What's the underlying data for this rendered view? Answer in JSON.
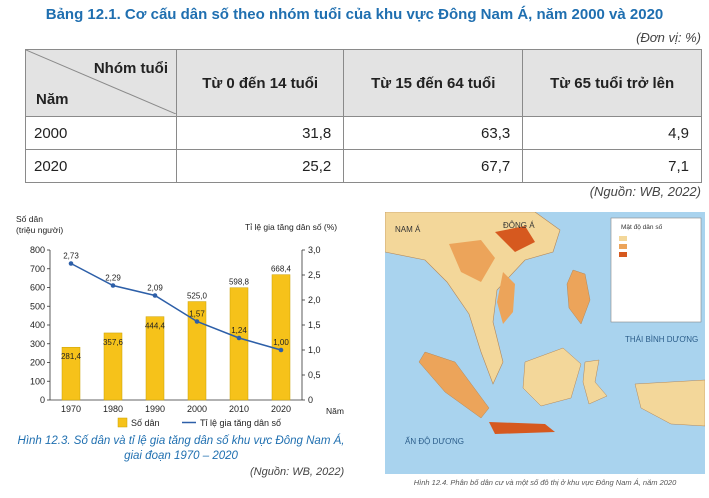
{
  "title": "Bảng 12.1. Cơ cấu dân số theo nhóm tuổi của khu vực Đông Nam Á, năm 2000 và 2020",
  "unit": "(Đơn vị: %)",
  "table": {
    "corner_top": "Nhóm tuổi",
    "corner_bottom": "Năm",
    "headers": [
      "Từ 0 đến 14 tuổi",
      "Từ 15 đến 64 tuổi",
      "Từ 65 tuổi trở lên"
    ],
    "rows": [
      {
        "year": "2000",
        "values": [
          "31,8",
          "63,3",
          "4,9"
        ]
      },
      {
        "year": "2020",
        "values": [
          "25,2",
          "67,7",
          "7,1"
        ]
      }
    ]
  },
  "table_source": "(Nguồn: WB, 2022)",
  "figure_caption_line1": "Hình 12.3. Số dân và tỉ lệ gia tăng dân số khu vực Đông Nam Á,",
  "figure_caption_line2": "giai đoạn 1970 – 2020",
  "figure_source": "(Nguồn: WB, 2022)",
  "map_caption": "Hình 12.4. Phân bố dân cư và một số đô thị ở khu vực Đông Nam Á, năm 2020",
  "map_labels": {
    "nam_a": "NAM Á",
    "dong_a": "ĐÔNG Á",
    "thai_binh_duong": "THÁI BÌNH DƯƠNG",
    "an_do_duong": "ẤN ĐỘ DƯƠNG",
    "legend_title": "Mật độ dân số"
  },
  "colors": {
    "title": "#1f6fb0",
    "bar": "#f6c21a",
    "line": "#2d5fa8",
    "header_bg": "#e3e3e3",
    "sea": "#a9d3ee",
    "land_low": "#f3d79a",
    "land_mid": "#eca45a",
    "land_high": "#d6591f"
  },
  "chart_data": {
    "type": "bar",
    "categories": [
      "1970",
      "1980",
      "1990",
      "2000",
      "2010",
      "2020"
    ],
    "series": [
      {
        "name": "Số dân",
        "type": "bar",
        "axis": "left",
        "values": [
          281.4,
          357.6,
          444.4,
          525.0,
          598.8,
          668.4
        ]
      },
      {
        "name": "Tỉ lệ gia tăng dân số",
        "type": "line",
        "axis": "right",
        "values": [
          2.73,
          2.29,
          2.09,
          1.57,
          1.24,
          1.0
        ]
      }
    ],
    "data_labels_bar": [
      "281,4",
      "357,6",
      "444,4",
      "525,0",
      "598,8",
      "668,4"
    ],
    "data_labels_line": [
      "2,73",
      "2,29",
      "2,09",
      "1,57",
      "1,24",
      "1,00"
    ],
    "ylabel_left_line1": "Số dân",
    "ylabel_left_line2": "(triệu người)",
    "ylabel_right": "Tỉ lệ gia tăng dân số (%)",
    "xlabel": "Năm",
    "ylim_left": [
      0,
      800
    ],
    "ylim_right": [
      0,
      3.0
    ],
    "yticks_left": [
      "0",
      "100",
      "200",
      "300",
      "400",
      "500",
      "600",
      "700",
      "800"
    ],
    "yticks_right": [
      "0",
      "0,5",
      "1,0",
      "1,5",
      "2,0",
      "2,5",
      "3,0"
    ],
    "legend": "bottom"
  }
}
